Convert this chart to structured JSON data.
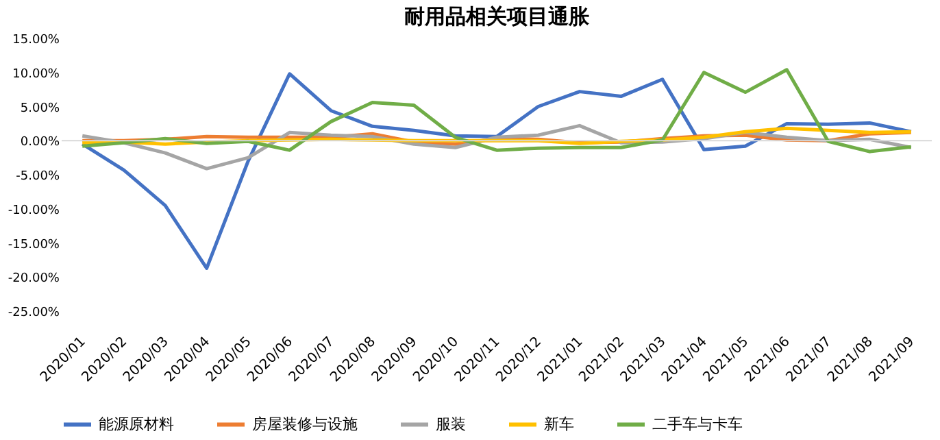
{
  "chart_data": {
    "type": "line",
    "title": "耐用品相关项目通胀",
    "categories": [
      "2020/01",
      "2020/02",
      "2020/03",
      "2020/04",
      "2020/05",
      "2020/06",
      "2020/07",
      "2020/08",
      "2020/09",
      "2020/10",
      "2020/11",
      "2020/12",
      "2021/01",
      "2021/02",
      "2021/03",
      "2021/04",
      "2021/05",
      "2021/06",
      "2021/07",
      "2021/08",
      "2021/09"
    ],
    "series": [
      {
        "name": "能源原材料",
        "color": "#4472c4",
        "values": [
          -0.5,
          -4.3,
          -9.5,
          -18.7,
          -3.0,
          9.8,
          4.4,
          2.1,
          1.5,
          0.7,
          0.6,
          5.0,
          7.2,
          6.5,
          9.0,
          -1.3,
          -0.8,
          2.5,
          2.4,
          2.6,
          1.3
        ]
      },
      {
        "name": "房屋装修与设施",
        "color": "#ed7d31",
        "values": [
          0.0,
          0.0,
          0.2,
          0.6,
          0.5,
          0.5,
          0.5,
          1.0,
          -0.2,
          -0.5,
          0.3,
          0.2,
          -0.3,
          -0.2,
          0.3,
          0.7,
          0.8,
          0.1,
          0.0,
          1.0,
          1.2
        ]
      },
      {
        "name": "服装",
        "color": "#a5a5a5",
        "values": [
          0.7,
          -0.3,
          -1.8,
          -4.1,
          -2.5,
          1.2,
          0.8,
          0.6,
          -0.5,
          -1.0,
          0.5,
          0.8,
          2.2,
          -0.3,
          -0.2,
          0.3,
          1.2,
          0.5,
          0.0,
          0.2,
          -1.0
        ]
      },
      {
        "name": "新车",
        "color": "#ffc000",
        "values": [
          -0.3,
          -0.2,
          -0.5,
          -0.2,
          0.0,
          0.1,
          0.2,
          0.1,
          0.0,
          0.0,
          0.0,
          0.0,
          -0.4,
          -0.1,
          0.1,
          0.5,
          1.3,
          1.8,
          1.5,
          1.2,
          1.3
        ]
      },
      {
        "name": "二手车与卡车",
        "color": "#70ad47",
        "values": [
          -0.8,
          -0.3,
          0.3,
          -0.4,
          -0.1,
          -1.4,
          2.8,
          5.6,
          5.2,
          0.5,
          -1.4,
          -1.1,
          -1.0,
          -1.0,
          0.1,
          10.0,
          7.1,
          10.4,
          -0.1,
          -1.6,
          -0.9
        ]
      }
    ],
    "ylim": [
      -25,
      15
    ],
    "yticks": [
      {
        "value": -25,
        "label": "-25.00%"
      },
      {
        "value": -20,
        "label": "-20.00%"
      },
      {
        "value": -15,
        "label": "-15.00%"
      },
      {
        "value": -10,
        "label": "-10.00%"
      },
      {
        "value": -5,
        "label": "-5.00%"
      },
      {
        "value": 0,
        "label": "0.00%"
      },
      {
        "value": 5,
        "label": "5.00%"
      },
      {
        "value": 10,
        "label": "10.00%"
      },
      {
        "value": 15,
        "label": "15.00%"
      }
    ],
    "ref_lines": [
      {
        "axis": "y",
        "value": 0,
        "color": "#d9d9d9"
      }
    ],
    "grid": false,
    "legend": "bottom",
    "marker": "none",
    "line_style": "solid"
  }
}
